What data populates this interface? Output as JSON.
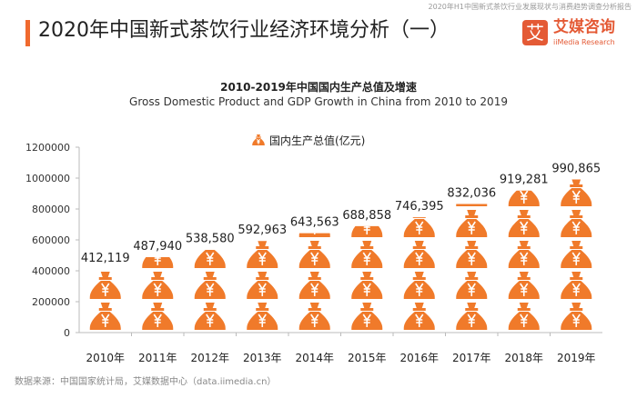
{
  "header": {
    "report_name": "2020年H1中国新式茶饮行业发展现状与消费趋势调查分析报告",
    "title": "2020年中国新式茶饮行业经济环境分析（一）",
    "logo_mark": "艾",
    "logo_cn": "艾媒咨询",
    "logo_en": "iiMedia Research"
  },
  "source": "数据来源：中国国家统计局，艾媒数据中心（data.iimedia.cn）",
  "chart_data": {
    "type": "bar",
    "style": "pictograph (money-bag icons, one per 200000)",
    "title": "2010-2019年中国国内生产总值及增速",
    "subtitle": "Gross Domestic Product and GDP Growth in China from 2010 to 2019",
    "legend": {
      "label": "国内生产总值(亿元)",
      "position": "top"
    },
    "categories": [
      "2010年",
      "2011年",
      "2012年",
      "2013年",
      "2014年",
      "2015年",
      "2016年",
      "2017年",
      "2018年",
      "2019年"
    ],
    "series": [
      {
        "name": "国内生产总值(亿元)",
        "values": [
          412119,
          487940,
          538580,
          592963,
          643563,
          688858,
          746395,
          832036,
          919281,
          990865
        ]
      }
    ],
    "data_labels": [
      "412,119",
      "487,940",
      "538,580",
      "592,963",
      "643,563",
      "688,858",
      "746,395",
      "832,036",
      "919,281",
      "990,865"
    ],
    "ylim": [
      0,
      1200000
    ],
    "yticks": [
      0,
      200000,
      400000,
      600000,
      800000,
      1000000,
      1200000
    ],
    "grid": false,
    "color": "#f07a2a"
  }
}
